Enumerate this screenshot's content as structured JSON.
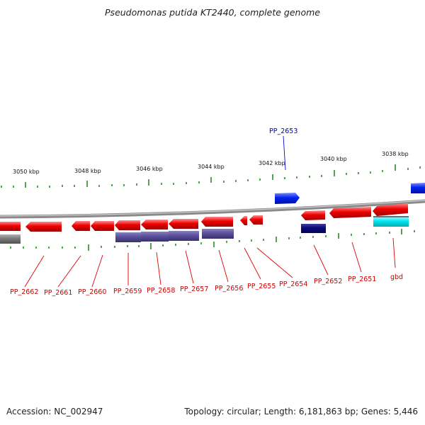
{
  "title": "Pseudomonas putida KT2440, complete genome",
  "footer": {
    "accession": "Accession: NC_002947",
    "summary": "Topology: circular; Length: 6,181,863 bp; Genes: 5,446"
  },
  "scale_labels": [
    "3050 kbp",
    "3048 kbp",
    "3046 kbp",
    "3044 kbp",
    "3042 kbp",
    "3040 kbp",
    "3038 kbp"
  ],
  "gene_labels_top": [
    "PP_2653"
  ],
  "gene_labels_bottom": [
    "PP_2662",
    "PP_2661",
    "PP_2660",
    "PP_2659",
    "PP_2658",
    "PP_2657",
    "PP_2656",
    "PP_2655",
    "PP_2654",
    "PP_2652",
    "PP_2651",
    "gbd"
  ],
  "colors": {
    "reverse_gene": "#ee0000",
    "forward_gene": "#0022ee",
    "purple_feature": "#5a4f9a",
    "navy_feature": "#0a0a78",
    "cyan_feature": "#00e5ee",
    "gray_feature": "#7a7a7a",
    "backbone": "#8a8a8a",
    "tick": "#2a8a2a",
    "label_red": "#cc0000",
    "label_blue": "#0000aa"
  }
}
